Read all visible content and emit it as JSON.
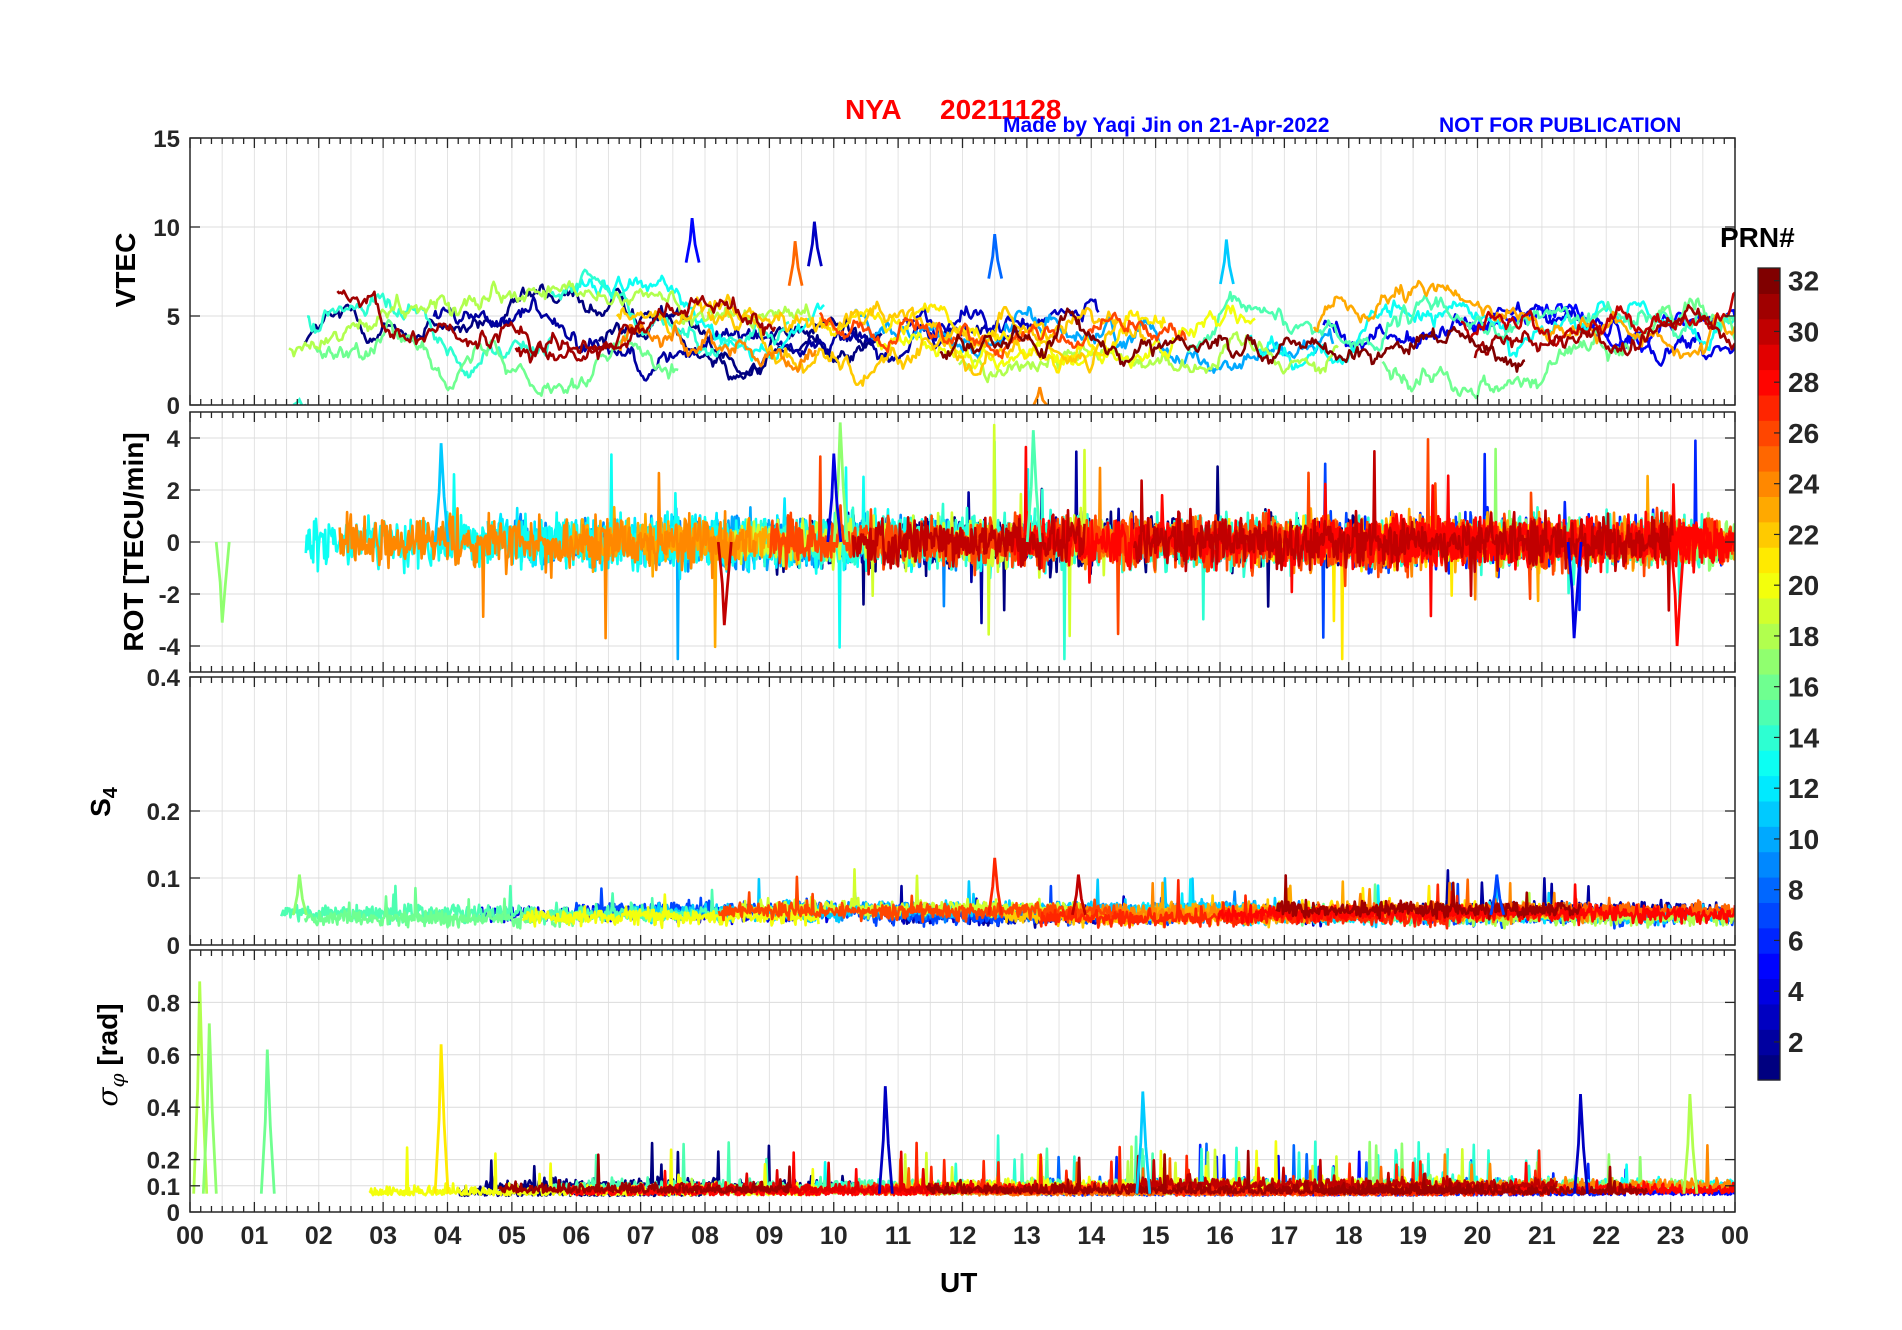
{
  "header": {
    "station": "NYA",
    "date": "20211128",
    "credit": "Made by Yaqi Jin on 21-Apr-2022",
    "notice": "NOT FOR PUBLICATION"
  },
  "colorbar": {
    "label": "PRN#",
    "ticks": [
      "32",
      "30",
      "28",
      "26",
      "24",
      "22",
      "20",
      "18",
      "16",
      "14",
      "12",
      "10",
      "8",
      "6",
      "4",
      "2"
    ],
    "range": [
      1,
      32
    ],
    "colormap": "jet"
  },
  "chart_data": [
    {
      "type": "line",
      "title": "NYA 20211128",
      "ylabel": "VTEC",
      "ylim": [
        0,
        15
      ],
      "yticks": [
        "0",
        "5",
        "10",
        "15"
      ],
      "xlabel": "UT",
      "xlim": [
        0,
        24
      ],
      "xtick_labels": [
        "00",
        "01",
        "02",
        "03",
        "04",
        "05",
        "06",
        "07",
        "08",
        "09",
        "10",
        "11",
        "12",
        "13",
        "14",
        "15",
        "16",
        "17",
        "18",
        "19",
        "20",
        "21",
        "22",
        "23",
        "00"
      ],
      "series_note": "one trace per GPS satellite PRN 1-32, color-coded by PRN",
      "features": [
        {
          "x": 7.8,
          "y": 10.5,
          "prn": 5,
          "note": "peak"
        },
        {
          "x": 9.7,
          "y": 10.3,
          "prn": 3,
          "note": "peak"
        },
        {
          "x": 9.4,
          "y": 9.2,
          "prn": 25,
          "note": "peak"
        },
        {
          "x": 12.5,
          "y": 9.6,
          "prn": 8,
          "note": "peak"
        },
        {
          "x": 16.1,
          "y": 9.3,
          "prn": 11,
          "note": "peak"
        },
        {
          "x": 13.2,
          "y": 1.0,
          "prn": 24,
          "note": "minimum"
        },
        {
          "x": 1.7,
          "y": 0.3,
          "prn": 14,
          "note": "minimum"
        }
      ],
      "typical_range": [
        2,
        7
      ]
    },
    {
      "type": "line",
      "ylabel": "ROT [TECU/min]",
      "ylim": [
        -5,
        5
      ],
      "yticks": [
        "-4",
        "-2",
        "0",
        "2",
        "4"
      ],
      "xlim": [
        0,
        24
      ],
      "series_note": "rate of TEC, all PRNs",
      "features": [
        {
          "x": 10.1,
          "y": 4.6,
          "prn": 17
        },
        {
          "x": 13.1,
          "y": 4.3,
          "prn": 15
        },
        {
          "x": 3.9,
          "y": 3.8,
          "prn": 11
        },
        {
          "x": 10.0,
          "y": 3.4,
          "prn": 4
        },
        {
          "x": 8.3,
          "y": -3.2,
          "prn": 30
        },
        {
          "x": 23.1,
          "y": -4.0,
          "prn": 28
        },
        {
          "x": 21.5,
          "y": -3.7,
          "prn": 4
        },
        {
          "x": 0.5,
          "y": -3.1,
          "prn": 17
        }
      ]
    },
    {
      "type": "line",
      "ylabel": "S4",
      "ylabel_main": "S",
      "ylabel_sub": "4",
      "ylim": [
        0,
        0.4
      ],
      "yticks": [
        "0",
        "0.1",
        "0.2",
        "0.4"
      ],
      "xlim": [
        0,
        24
      ],
      "series_note": "amplitude scintillation index, all PRNs",
      "features": [
        {
          "x": 12.5,
          "y": 0.13,
          "prn": 27
        },
        {
          "x": 13.8,
          "y": 0.105,
          "prn": 30
        },
        {
          "x": 1.7,
          "y": 0.105,
          "prn": 17
        },
        {
          "x": 20.3,
          "y": 0.105,
          "prn": 7
        }
      ],
      "typical_range": [
        0.03,
        0.07
      ]
    },
    {
      "type": "line",
      "ylabel": "σφ [rad]",
      "ylabel_sigma": "σ",
      "ylabel_sub": "φ",
      "ylabel_unit": "[rad]",
      "ylim": [
        0,
        1.0
      ],
      "yticks": [
        "0",
        "0.1",
        "0.2",
        "0.4",
        "0.6",
        "0.8"
      ],
      "xlabel": "UT",
      "xlim": [
        0,
        24
      ],
      "series_note": "phase scintillation index, all PRNs",
      "features": [
        {
          "x": 0.15,
          "y": 0.88,
          "prn": 18
        },
        {
          "x": 0.3,
          "y": 0.72,
          "prn": 17
        },
        {
          "x": 1.2,
          "y": 0.62,
          "prn": 16
        },
        {
          "x": 3.9,
          "y": 0.64,
          "prn": 21
        },
        {
          "x": 10.8,
          "y": 0.48,
          "prn": 3
        },
        {
          "x": 14.8,
          "y": 0.46,
          "prn": 11
        },
        {
          "x": 21.6,
          "y": 0.45,
          "prn": 3
        },
        {
          "x": 23.3,
          "y": 0.45,
          "prn": 18
        }
      ],
      "typical_range": [
        0.05,
        0.15
      ]
    }
  ]
}
